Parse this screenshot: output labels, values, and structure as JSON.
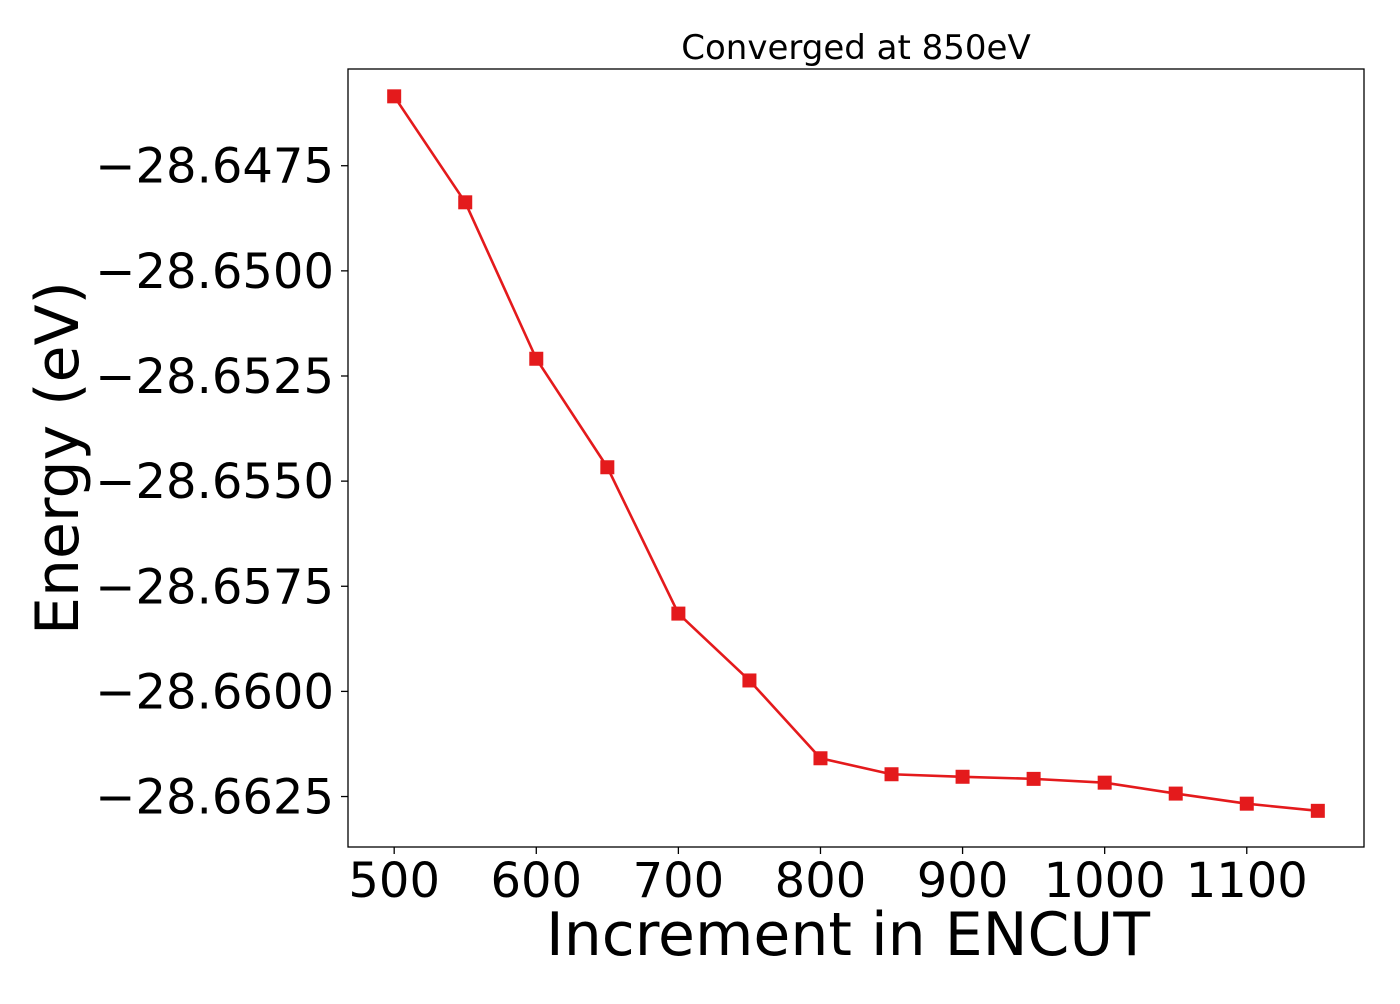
{
  "chart_data": {
    "type": "line",
    "title": "Converged at 850eV",
    "xlabel": "Increment in ENCUT",
    "ylabel": "Energy (eV)",
    "x": [
      500,
      550,
      600,
      650,
      700,
      750,
      800,
      850,
      900,
      950,
      1000,
      1050,
      1100,
      1150
    ],
    "series": [
      {
        "values": [
          -28.64585,
          -28.64837,
          -28.65209,
          -28.65467,
          -28.65815,
          -28.65974,
          -28.66159,
          -28.66197,
          -28.66203,
          -28.66208,
          -28.66217,
          -28.66243,
          -28.66267,
          -28.66284
        ],
        "color": "#e41a1c",
        "marker": "square"
      }
    ],
    "xlim": [
      467.5,
      1182.5
    ],
    "ylim": [
      -28.6637,
      -28.6452
    ],
    "xticks": [
      500,
      600,
      700,
      800,
      900,
      1000,
      1100
    ],
    "xtick_labels": [
      "500",
      "600",
      "700",
      "800",
      "900",
      "1000",
      "1100"
    ],
    "yticks": [
      -28.6475,
      -28.65,
      -28.6525,
      -28.655,
      -28.6575,
      -28.66,
      -28.6625
    ],
    "ytick_labels": [
      "−28.6475",
      "−28.6500",
      "−28.6525",
      "−28.6550",
      "−28.6575",
      "−28.6600",
      "−28.6625"
    ],
    "grid": false,
    "legend": "none"
  }
}
